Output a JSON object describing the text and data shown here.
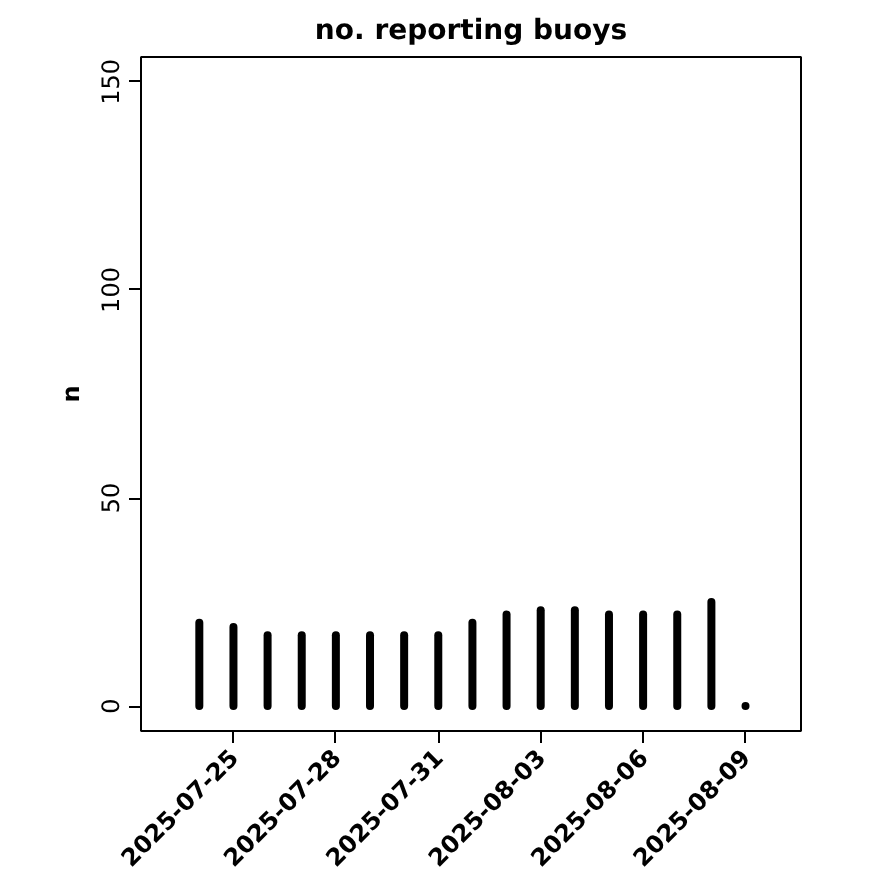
{
  "chart_data": {
    "type": "bar",
    "title": "no. reporting buoys",
    "ylabel": "n",
    "x": [
      "2025-07-24",
      "2025-07-25",
      "2025-07-26",
      "2025-07-27",
      "2025-07-28",
      "2025-07-29",
      "2025-07-30",
      "2025-07-31",
      "2025-08-01",
      "2025-08-02",
      "2025-08-03",
      "2025-08-04",
      "2025-08-05",
      "2025-08-06",
      "2025-08-07",
      "2025-08-08",
      "2025-08-09"
    ],
    "values": [
      20,
      19,
      17,
      17,
      17,
      17,
      17,
      17,
      20,
      22,
      23,
      23,
      22,
      22,
      22,
      25,
      0
    ],
    "color": "#000000",
    "xlim": [
      "2025-07-22T07:00",
      "2025-08-10T15:00"
    ],
    "xticks": [
      "2025-07-25",
      "2025-07-28",
      "2025-07-31",
      "2025-08-03",
      "2025-08-06",
      "2025-08-09"
    ],
    "ylim": [
      -6,
      156
    ],
    "yticks": [
      0,
      50,
      100,
      150
    ],
    "grid": false
  }
}
